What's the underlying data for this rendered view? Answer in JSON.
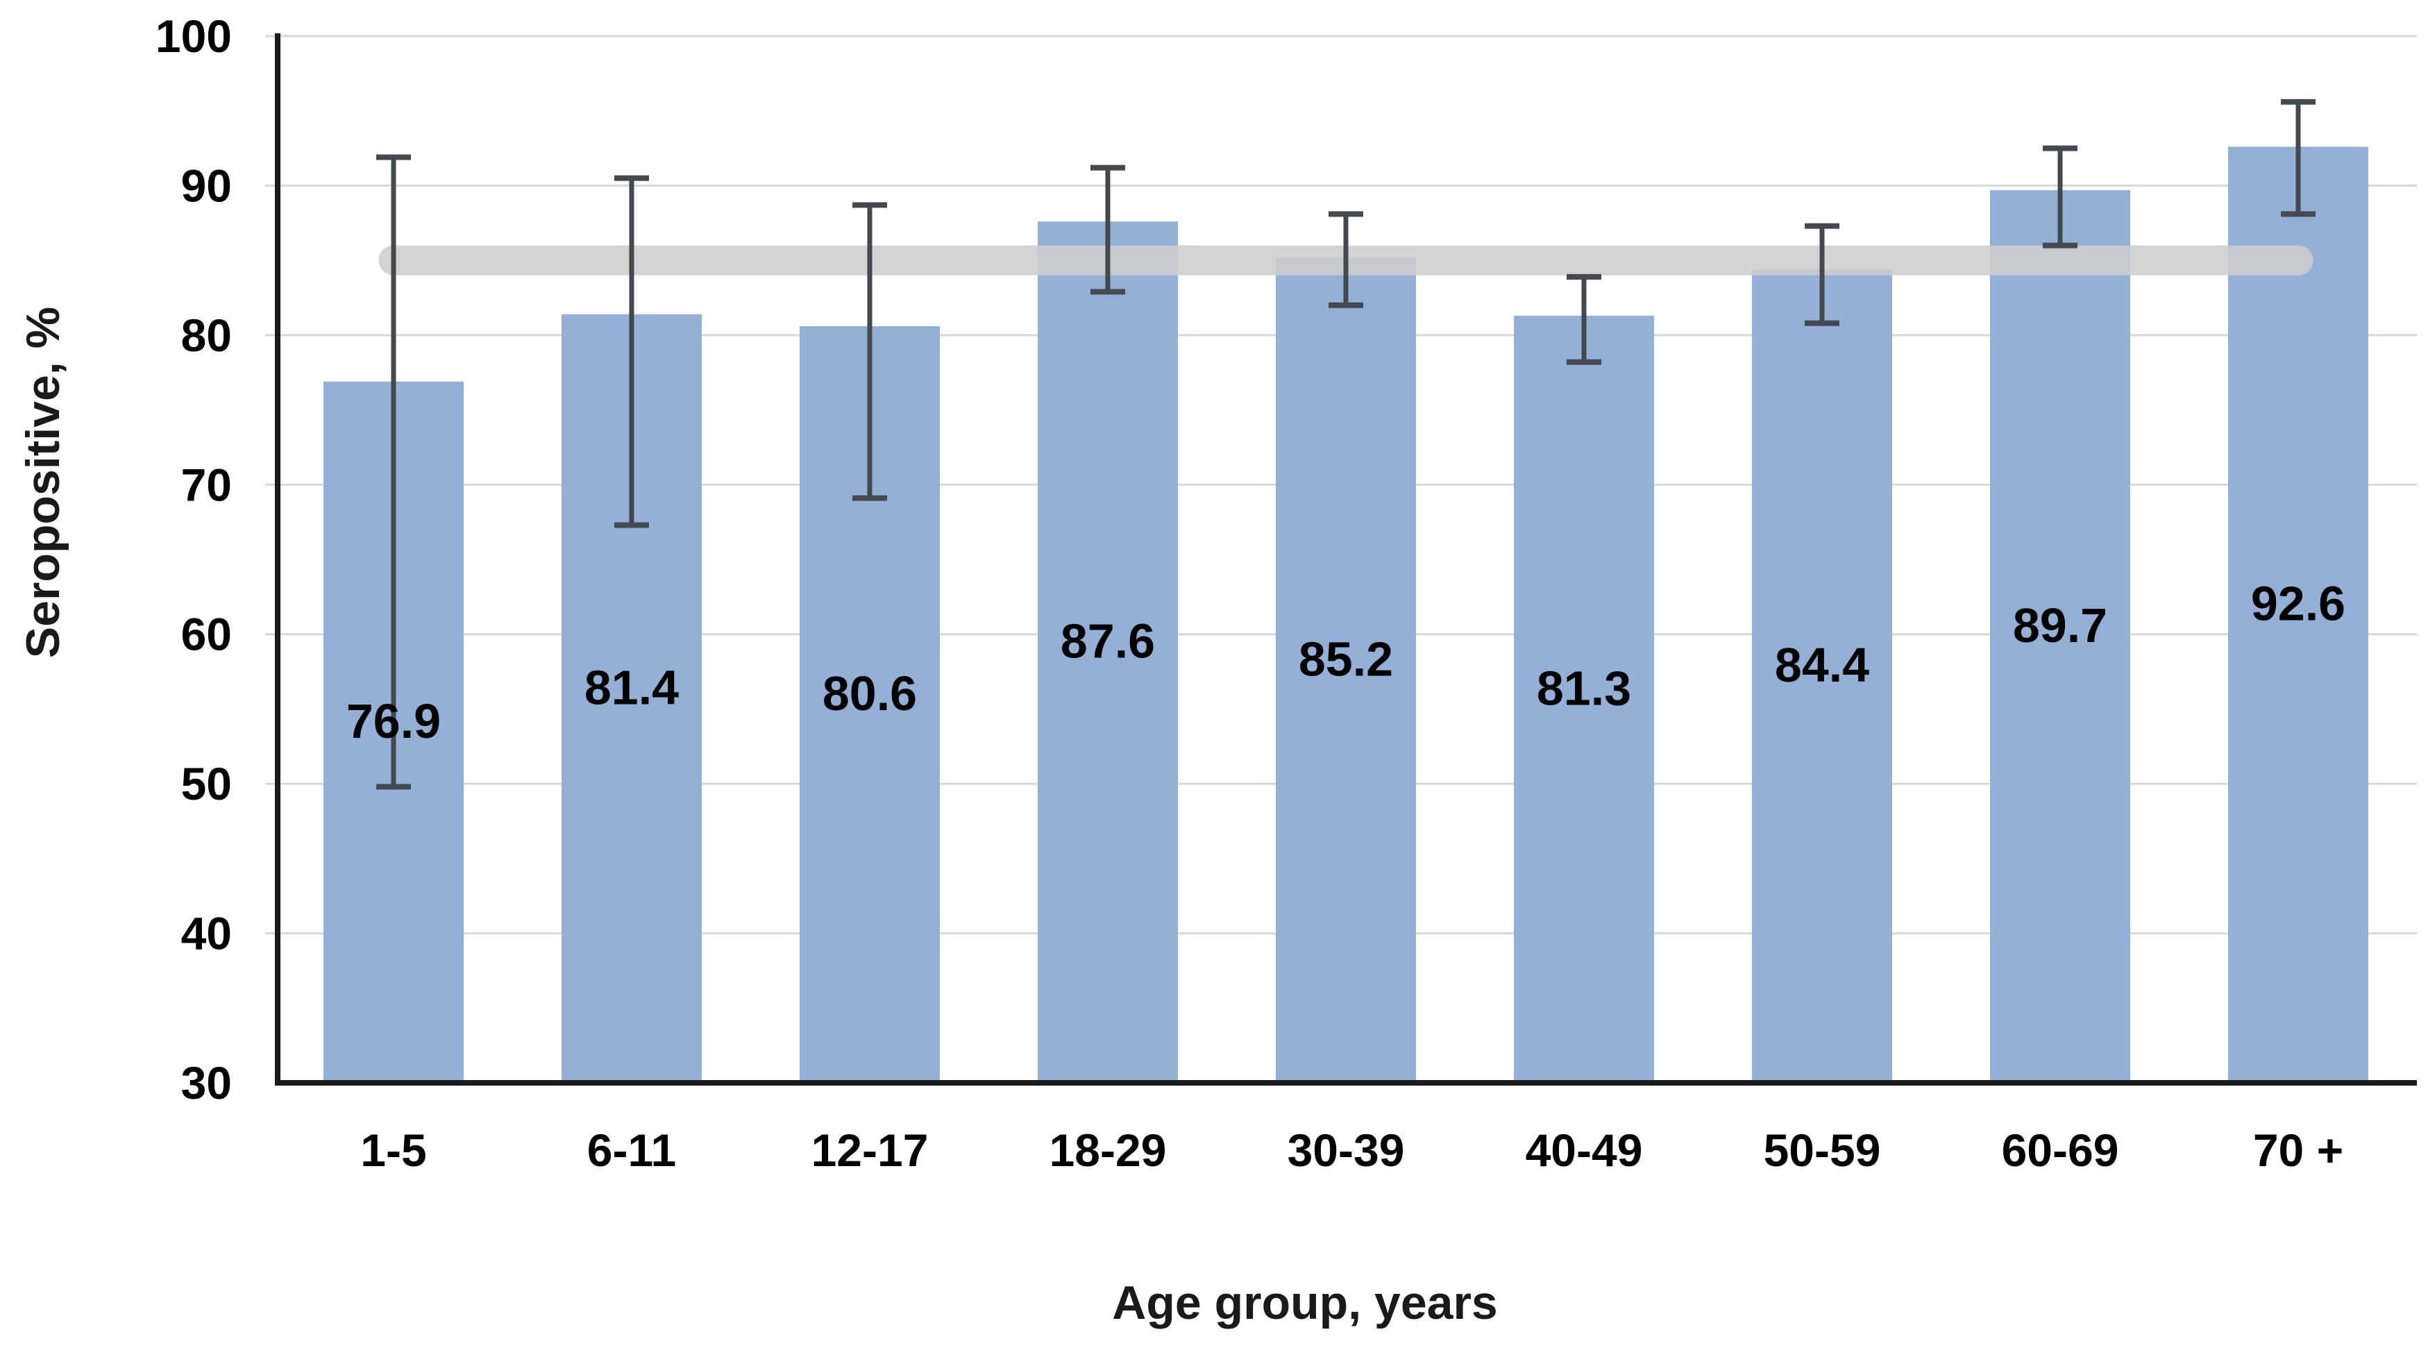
{
  "chart_data": {
    "type": "bar",
    "title": "",
    "xlabel": "Age group, years",
    "ylabel": "Seropositive, %",
    "categories": [
      "1-5",
      "6-11",
      "12-17",
      "18-29",
      "30-39",
      "40-49",
      "50-59",
      "60-69",
      "70 +"
    ],
    "values": [
      76.9,
      81.4,
      80.6,
      87.6,
      85.2,
      81.3,
      84.4,
      89.7,
      92.6
    ],
    "value_labels": [
      "76.9",
      "81.4",
      "80.6",
      "87.6",
      "85.2",
      "81.3",
      "84.4",
      "89.7",
      "92.6"
    ],
    "error_bars": {
      "low": [
        49.8,
        67.3,
        69.1,
        82.9,
        82.0,
        78.2,
        80.8,
        86.0,
        88.1
      ],
      "high": [
        91.9,
        90.5,
        88.7,
        91.2,
        88.1,
        83.9,
        87.3,
        92.5,
        95.6
      ]
    },
    "reference_band": {
      "value": 85,
      "thickness_units": 2
    },
    "ylim": [
      30,
      100
    ],
    "yticks": [
      100,
      90,
      80,
      70,
      60,
      50,
      40,
      30
    ],
    "grid": true,
    "legend": "none",
    "colors": {
      "bar": "#94B0D6",
      "error": "#44494F",
      "band": "#CDCDCD",
      "gridline": "#D8D8D8",
      "axis": "#1A1A1A",
      "text": "#000000"
    }
  }
}
